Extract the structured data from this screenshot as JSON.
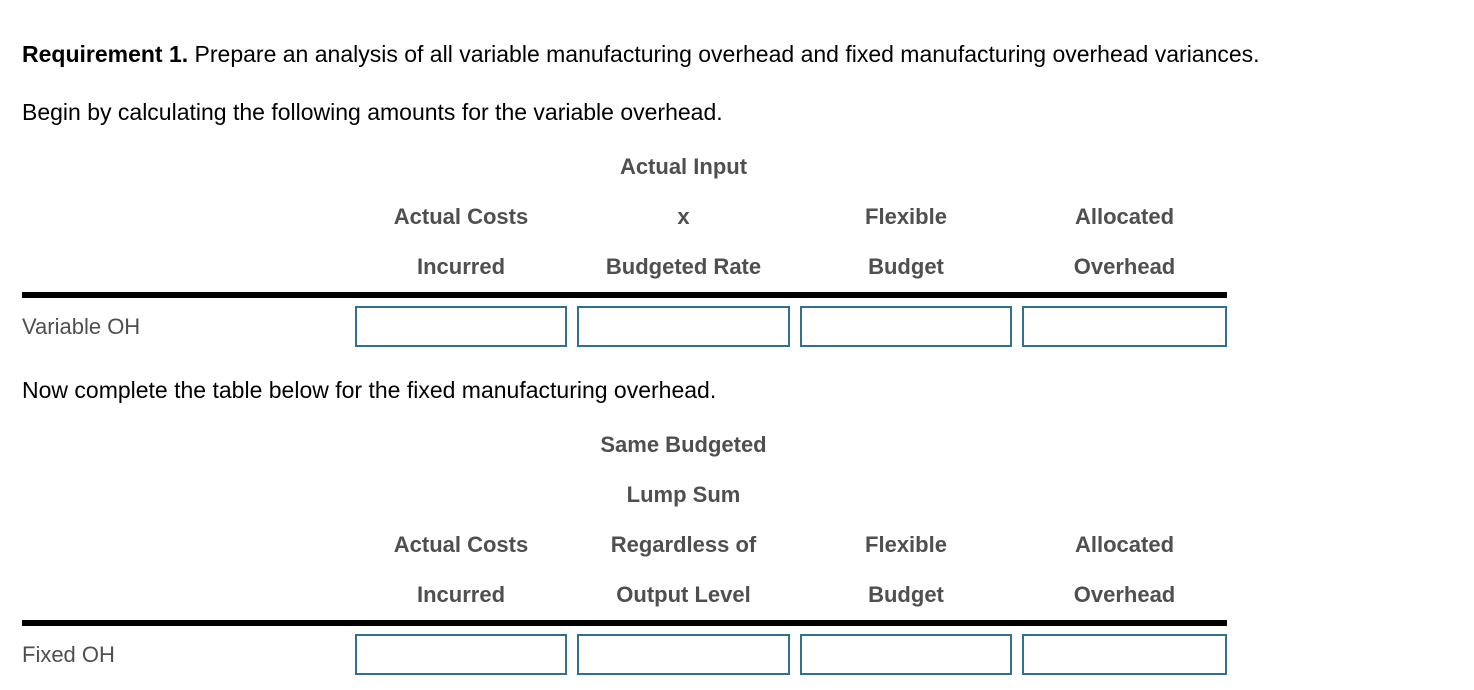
{
  "intro": {
    "requirement_label": "Requirement 1.",
    "requirement_text": "Prepare an analysis of all variable manufacturing overhead and fixed manufacturing overhead variances.",
    "variable_instruction": "Begin by calculating the following amounts for the variable overhead.",
    "fixed_instruction": "Now complete the table below for the fixed manufacturing overhead."
  },
  "variable_table": {
    "row_label": "Variable OH",
    "columns": [
      {
        "lines": [
          "Actual Costs",
          "Incurred"
        ]
      },
      {
        "lines": [
          "Actual Input",
          "x",
          "Budgeted Rate"
        ]
      },
      {
        "lines": [
          "Flexible",
          "Budget"
        ]
      },
      {
        "lines": [
          "Allocated",
          "Overhead"
        ]
      }
    ],
    "inputs": [
      {
        "value": ""
      },
      {
        "value": ""
      },
      {
        "value": ""
      },
      {
        "value": ""
      }
    ]
  },
  "fixed_table": {
    "row_label": "Fixed OH",
    "columns": [
      {
        "lines": [
          "Actual Costs",
          "Incurred"
        ]
      },
      {
        "lines": [
          "Same Budgeted",
          "Lump Sum",
          "Regardless of",
          "Output Level"
        ]
      },
      {
        "lines": [
          "Flexible",
          "Budget"
        ]
      },
      {
        "lines": [
          "Allocated",
          "Overhead"
        ]
      }
    ],
    "inputs": [
      {
        "value": ""
      },
      {
        "value": ""
      },
      {
        "value": ""
      },
      {
        "value": ""
      }
    ]
  },
  "colors": {
    "background": "#ffffff",
    "body_text": "#000000",
    "header_text": "#4f4f4f",
    "row_label_text": "#4f4f4f",
    "input_border": "#31708f",
    "rule": "#000000"
  }
}
